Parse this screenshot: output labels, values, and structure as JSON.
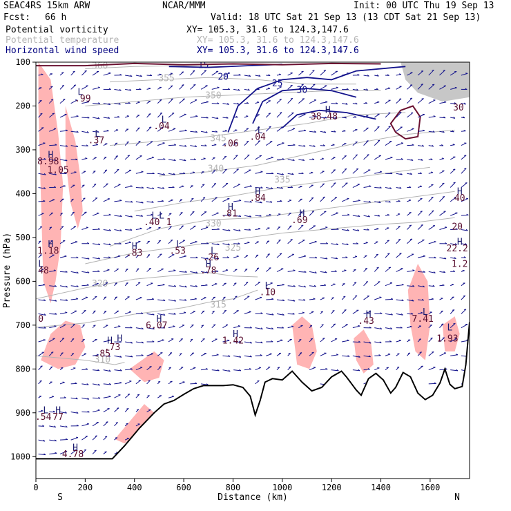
{
  "header": {
    "model": "SEAC4RS 15km ARW",
    "org": "NCAR/MMM",
    "init": "Init: 00 UTC Thu 19 Sep 13",
    "fcst_label": "Fcst:",
    "fcst_value": "66 h",
    "valid": "Valid: 18 UTC Sat 21 Sep 13 (13 CDT Sat 21 Sep 13)",
    "fields": [
      {
        "name": "Potential vorticity",
        "xy": "XY= 105.3, 31.6 to 124.3,147.6",
        "color": "#000000"
      },
      {
        "name": "Potential temperature",
        "xy": "XY= 105.3, 31.6 to 124.3,147.6",
        "color": "#b4b4b4"
      },
      {
        "name": "Horizontal wind speed",
        "xy": "XY= 105.3, 31.6 to 124.3,147.6",
        "color": "#000080"
      }
    ]
  },
  "colors": {
    "pv_fill": "#ffb4b4",
    "theta": "#b4b4b4",
    "wind": "#14148c",
    "pv_contour": "#6a1030",
    "terrain": "#000000",
    "label_text": "#1a1a6e",
    "label_pv": "#5a1030"
  },
  "chart_data": {
    "type": "cross-section",
    "xlabel": "Distance (km)",
    "ylabel": "Pressure (hPa)",
    "xlim": [
      0,
      1760
    ],
    "ylim": [
      1050,
      100
    ],
    "x_ticks": [
      0,
      200,
      400,
      600,
      800,
      1000,
      1200,
      1400,
      1600
    ],
    "y_ticks": [
      100,
      200,
      300,
      400,
      500,
      600,
      700,
      800,
      900,
      1000
    ],
    "x_endpoint_labels": {
      "left": "S",
      "right": "N"
    },
    "terrain": [
      [
        0,
        1005
      ],
      [
        80,
        1005
      ],
      [
        310,
        1005
      ],
      [
        360,
        975
      ],
      [
        420,
        935
      ],
      [
        480,
        900
      ],
      [
        520,
        880
      ],
      [
        560,
        872
      ],
      [
        600,
        858
      ],
      [
        640,
        845
      ],
      [
        680,
        838
      ],
      [
        720,
        838
      ],
      [
        760,
        838
      ],
      [
        800,
        836
      ],
      [
        840,
        842
      ],
      [
        870,
        862
      ],
      [
        890,
        905
      ],
      [
        910,
        872
      ],
      [
        930,
        830
      ],
      [
        960,
        822
      ],
      [
        1000,
        825
      ],
      [
        1040,
        805
      ],
      [
        1080,
        830
      ],
      [
        1120,
        850
      ],
      [
        1160,
        842
      ],
      [
        1200,
        818
      ],
      [
        1240,
        805
      ],
      [
        1260,
        818
      ],
      [
        1300,
        848
      ],
      [
        1320,
        860
      ],
      [
        1350,
        822
      ],
      [
        1380,
        810
      ],
      [
        1410,
        825
      ],
      [
        1440,
        855
      ],
      [
        1460,
        842
      ],
      [
        1490,
        808
      ],
      [
        1520,
        818
      ],
      [
        1550,
        855
      ],
      [
        1580,
        870
      ],
      [
        1610,
        860
      ],
      [
        1640,
        832
      ],
      [
        1660,
        800
      ],
      [
        1680,
        835
      ],
      [
        1700,
        845
      ],
      [
        1730,
        840
      ],
      [
        1745,
        790
      ],
      [
        1760,
        693
      ]
    ],
    "theta_contours": [
      {
        "level": "310",
        "points": [
          [
            0,
            770
          ],
          [
            200,
            780
          ],
          [
            320,
            790
          ],
          [
            360,
            785
          ]
        ],
        "label_at": [
          270,
          785
        ]
      },
      {
        "level": "315",
        "points": [
          [
            0,
            705
          ],
          [
            200,
            695
          ],
          [
            400,
            675
          ],
          [
            600,
            660
          ],
          [
            700,
            648
          ],
          [
            800,
            640
          ],
          [
            900,
            620
          ]
        ],
        "label_at": [
          740,
          660
        ]
      },
      {
        "level": "320",
        "points": [
          [
            0,
            640
          ],
          [
            200,
            615
          ],
          [
            400,
            595
          ],
          [
            600,
            585
          ],
          [
            700,
            580
          ],
          [
            800,
            588
          ],
          [
            900,
            590
          ]
        ],
        "label_at": [
          260,
          612
        ]
      },
      {
        "level": "325",
        "points": [
          [
            200,
            560
          ],
          [
            400,
            535
          ],
          [
            600,
            520
          ],
          [
            800,
            505
          ],
          [
            1000,
            490
          ],
          [
            1200,
            480
          ],
          [
            1400,
            470
          ],
          [
            1550,
            465
          ],
          [
            1700,
            455
          ]
        ],
        "label_at": [
          800,
          530
        ]
      },
      {
        "level": "330",
        "points": [
          [
            300,
            520
          ],
          [
            500,
            480
          ],
          [
            700,
            460
          ],
          [
            900,
            455
          ],
          [
            1100,
            440
          ],
          [
            1300,
            425
          ],
          [
            1500,
            410
          ],
          [
            1700,
            395
          ]
        ],
        "label_at": [
          720,
          475
        ]
      },
      {
        "level": "335",
        "points": [
          [
            400,
            440
          ],
          [
            600,
            420
          ],
          [
            800,
            405
          ],
          [
            1000,
            385
          ],
          [
            1200,
            370
          ],
          [
            1400,
            355
          ],
          [
            1600,
            340
          ]
        ],
        "label_at": [
          1000,
          375
        ]
      },
      {
        "level": "340",
        "points": [
          [
            500,
            360
          ],
          [
            700,
            350
          ],
          [
            900,
            335
          ],
          [
            1100,
            310
          ],
          [
            1300,
            285
          ],
          [
            1500,
            265
          ],
          [
            1700,
            255
          ]
        ],
        "label_at": [
          730,
          350
        ]
      },
      {
        "level": "345",
        "points": [
          [
            300,
            290
          ],
          [
            500,
            280
          ],
          [
            700,
            270
          ],
          [
            900,
            255
          ],
          [
            1100,
            240
          ],
          [
            1300,
            220
          ],
          [
            1500,
            215
          ]
        ],
        "label_at": [
          740,
          280
        ]
      },
      {
        "level": "350",
        "points": [
          [
            200,
            200
          ],
          [
            400,
            190
          ],
          [
            600,
            180
          ],
          [
            800,
            175
          ],
          [
            1000,
            170
          ],
          [
            1200,
            165
          ],
          [
            1400,
            165
          ]
        ],
        "label_at": [
          720,
          183
        ]
      },
      {
        "level": "355",
        "points": [
          [
            300,
            145
          ],
          [
            500,
            140
          ],
          [
            700,
            135
          ],
          [
            900,
            140
          ],
          [
            1100,
            150
          ],
          [
            1300,
            150
          ]
        ],
        "label_at": [
          530,
          143
        ]
      },
      {
        "level": "360",
        "points": [
          [
            200,
            115
          ],
          [
            400,
            110
          ],
          [
            600,
            108
          ],
          [
            800,
            110
          ]
        ],
        "label_at": [
          260,
          115
        ]
      }
    ],
    "wind_speed_contours": [
      {
        "level": "15",
        "points": [
          [
            540,
            110
          ],
          [
            700,
            112
          ],
          [
            860,
            108
          ],
          [
            1000,
            105
          ]
        ],
        "label_at": [
          680,
          113
        ]
      },
      {
        "level": "20",
        "points": [
          [
            780,
            260
          ],
          [
            820,
            200
          ],
          [
            900,
            160
          ],
          [
            1000,
            140
          ],
          [
            1100,
            135
          ],
          [
            1200,
            140
          ],
          [
            1300,
            120
          ],
          [
            1500,
            110
          ]
        ],
        "label_at": [
          760,
          140
        ]
      },
      {
        "level": "25",
        "points": [
          [
            880,
            240
          ],
          [
            920,
            190
          ],
          [
            1000,
            165
          ],
          [
            1100,
            160
          ],
          [
            1200,
            165
          ],
          [
            1300,
            180
          ]
        ],
        "label_at": [
          980,
          155
        ]
      },
      {
        "level": "30",
        "points": [
          [
            1000,
            250
          ],
          [
            1060,
            220
          ],
          [
            1150,
            210
          ],
          [
            1260,
            215
          ],
          [
            1380,
            230
          ]
        ],
        "label_at": [
          1080,
          170
        ]
      }
    ],
    "pv_shaded_regions": [
      [
        [
          10,
          100
        ],
        [
          60,
          140
        ],
        [
          90,
          260
        ],
        [
          110,
          380
        ],
        [
          100,
          520
        ],
        [
          80,
          600
        ],
        [
          60,
          650
        ],
        [
          30,
          600
        ],
        [
          20,
          400
        ],
        [
          10,
          200
        ]
      ],
      [
        [
          120,
          200
        ],
        [
          160,
          280
        ],
        [
          180,
          360
        ],
        [
          190,
          440
        ],
        [
          170,
          480
        ],
        [
          140,
          420
        ],
        [
          120,
          320
        ]
      ],
      [
        [
          20,
          780
        ],
        [
          60,
          720
        ],
        [
          120,
          690
        ],
        [
          180,
          700
        ],
        [
          200,
          750
        ],
        [
          160,
          790
        ],
        [
          90,
          800
        ]
      ],
      [
        [
          380,
          800
        ],
        [
          430,
          780
        ],
        [
          480,
          760
        ],
        [
          520,
          780
        ],
        [
          500,
          820
        ],
        [
          440,
          830
        ]
      ],
      [
        [
          320,
          960
        ],
        [
          380,
          920
        ],
        [
          440,
          880
        ],
        [
          480,
          900
        ],
        [
          420,
          940
        ],
        [
          360,
          970
        ]
      ],
      [
        [
          1040,
          700
        ],
        [
          1080,
          680
        ],
        [
          1120,
          700
        ],
        [
          1140,
          760
        ],
        [
          1110,
          800
        ],
        [
          1060,
          790
        ]
      ],
      [
        [
          1290,
          730
        ],
        [
          1330,
          710
        ],
        [
          1360,
          740
        ],
        [
          1370,
          790
        ],
        [
          1330,
          810
        ],
        [
          1300,
          780
        ]
      ],
      [
        [
          1510,
          620
        ],
        [
          1550,
          560
        ],
        [
          1590,
          600
        ],
        [
          1600,
          700
        ],
        [
          1580,
          780
        ],
        [
          1540,
          760
        ],
        [
          1520,
          700
        ]
      ],
      [
        [
          1650,
          700
        ],
        [
          1700,
          680
        ],
        [
          1720,
          720
        ],
        [
          1700,
          760
        ],
        [
          1660,
          760
        ]
      ]
    ],
    "pv_contour": [
      [
        1440,
        240
      ],
      [
        1480,
        210
      ],
      [
        1530,
        200
      ],
      [
        1560,
        225
      ],
      [
        1550,
        270
      ],
      [
        1500,
        275
      ],
      [
        1460,
        260
      ]
    ],
    "upper_shading": [
      [
        1480,
        100
      ],
      [
        1760,
        100
      ],
      [
        1760,
        180
      ],
      [
        1650,
        190
      ],
      [
        1550,
        170
      ],
      [
        1500,
        140
      ]
    ],
    "annotations": [
      {
        "text": "L",
        "x": 180,
        "y": 175
      },
      {
        "text": ".99",
        "x": 190,
        "y": 190
      },
      {
        "text": "L",
        "x": 250,
        "y": 270
      },
      {
        "text": ".37",
        "x": 245,
        "y": 285
      },
      {
        "text": "H",
        "x": 60,
        "y": 318
      },
      {
        "text": "8.98",
        "x": 50,
        "y": 333
      },
      {
        "text": "1.05",
        "x": 90,
        "y": 353
      },
      {
        "text": "L",
        "x": 520,
        "y": 238
      },
      {
        "text": ".04",
        "x": 510,
        "y": 253
      },
      {
        "text": "H",
        "x": 1185,
        "y": 216
      },
      {
        "text": "38.48",
        "x": 1170,
        "y": 231
      },
      {
        "text": "L",
        "x": 910,
        "y": 262
      },
      {
        "text": ".04",
        "x": 900,
        "y": 277
      },
      {
        "text": ".06",
        "x": 790,
        "y": 292
      },
      {
        "text": "H",
        "x": 900,
        "y": 402
      },
      {
        "text": ".84",
        "x": 900,
        "y": 417
      },
      {
        "text": "H",
        "x": 790,
        "y": 437
      },
      {
        "text": ".81",
        "x": 785,
        "y": 452
      },
      {
        "text": "H",
        "x": 1080,
        "y": 452
      },
      {
        "text": ".69",
        "x": 1070,
        "y": 467
      },
      {
        "text": "L",
        "x": 480,
        "y": 457
      },
      {
        "text": ".40",
        "x": 470,
        "y": 472
      },
      {
        "text": "L",
        "x": 510,
        "y": 457
      },
      {
        "text": "1",
        "x": 540,
        "y": 472
      },
      {
        "text": "L",
        "x": 580,
        "y": 522
      },
      {
        "text": ".53",
        "x": 575,
        "y": 537
      },
      {
        "text": "L",
        "x": 720,
        "y": 537
      },
      {
        "text": ".26",
        "x": 710,
        "y": 552
      },
      {
        "text": "H",
        "x": 700,
        "y": 567
      },
      {
        "text": ".78",
        "x": 700,
        "y": 582
      },
      {
        "text": "H",
        "x": 60,
        "y": 522
      },
      {
        "text": "1.18",
        "x": 50,
        "y": 537
      },
      {
        "text": "L",
        "x": 20,
        "y": 567
      },
      {
        "text": ".48",
        "x": 20,
        "y": 582
      },
      {
        "text": "H",
        "x": 400,
        "y": 527
      },
      {
        "text": ".83",
        "x": 400,
        "y": 542
      },
      {
        "text": "L",
        "x": 940,
        "y": 617
      },
      {
        "text": ".10",
        "x": 940,
        "y": 632
      },
      {
        "text": "0",
        "x": 20,
        "y": 692
      },
      {
        "text": "H",
        "x": 500,
        "y": 692
      },
      {
        "text": "6.07",
        "x": 490,
        "y": 707
      },
      {
        "text": "H",
        "x": 300,
        "y": 742
      },
      {
        "text": ".73",
        "x": 310,
        "y": 757
      },
      {
        "text": "H",
        "x": 340,
        "y": 737
      },
      {
        "text": ".85",
        "x": 270,
        "y": 772
      },
      {
        "text": "H",
        "x": 810,
        "y": 727
      },
      {
        "text": "1.42",
        "x": 800,
        "y": 742
      },
      {
        "text": "H",
        "x": 1350,
        "y": 682
      },
      {
        "text": ".43",
        "x": 1340,
        "y": 697
      },
      {
        "text": "L",
        "x": 1580,
        "y": 677
      },
      {
        "text": "7.41",
        "x": 1570,
        "y": 692
      },
      {
        "text": "L",
        "x": 1680,
        "y": 712
      },
      {
        "text": "1.93",
        "x": 1670,
        "y": 737
      },
      {
        "text": "L",
        "x": 40,
        "y": 901
      },
      {
        "text": ".54",
        "x": 30,
        "y": 916
      },
      {
        "text": "H",
        "x": 90,
        "y": 901
      },
      {
        "text": "77",
        "x": 90,
        "y": 916
      },
      {
        "text": "H",
        "x": 160,
        "y": 986
      },
      {
        "text": "4.78",
        "x": 150,
        "y": 1001
      },
      {
        "text": "H",
        "x": 1720,
        "y": 402
      },
      {
        "text": "40",
        "x": 1720,
        "y": 417
      },
      {
        "text": "20",
        "x": 1710,
        "y": 482
      },
      {
        "text": "H",
        "x": 1720,
        "y": 517
      },
      {
        "text": "22.2",
        "x": 1710,
        "y": 532
      },
      {
        "text": "1.2",
        "x": 1720,
        "y": 567
      },
      {
        "text": "30",
        "x": 1715,
        "y": 210
      }
    ]
  }
}
